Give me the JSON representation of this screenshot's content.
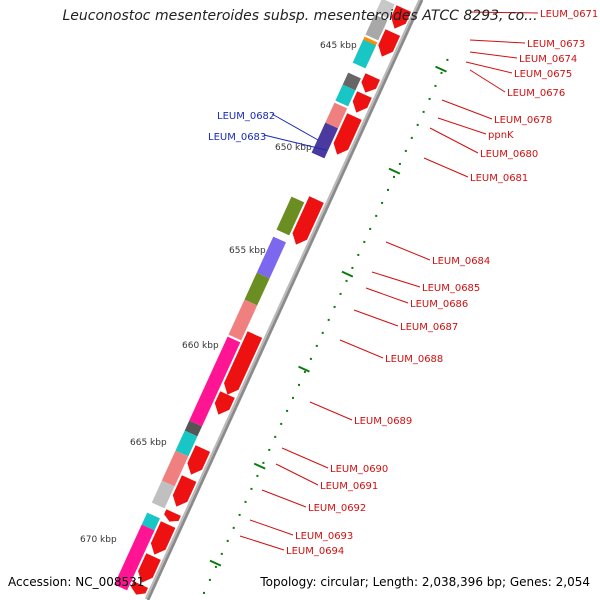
{
  "title": "Leuconostoc mesenteroides subsp. mesenteroides ATCC 8293, co...",
  "accession": "Accession: NC_008531",
  "topology": "Topology: circular; Length: 2,038,396 bp; Genes: 2,054",
  "colors": {
    "gene_red": "#ee1111",
    "gene_blue": "#1a2ad8",
    "label_red": "#d01010",
    "label_blue": "#1a2ab8",
    "scale_green": "#0a7a0a",
    "backbone": "#8a8a8a"
  },
  "scale_ticks": [
    {
      "label": "645 kbp"
    },
    {
      "label": "650 kbp"
    },
    {
      "label": "655 kbp"
    },
    {
      "label": "660 kbp"
    },
    {
      "label": "665 kbp"
    },
    {
      "label": "670 kbp"
    }
  ],
  "left_labels": [
    {
      "text": "LEUM_0682"
    },
    {
      "text": "LEUM_0683"
    }
  ],
  "right_labels": [
    {
      "text": "LEUM_0671"
    },
    {
      "text": "LEUM_0673"
    },
    {
      "text": "LEUM_0674"
    },
    {
      "text": "LEUM_0675"
    },
    {
      "text": "LEUM_0676"
    },
    {
      "text": "LEUM_0678"
    },
    {
      "text": "ppnK"
    },
    {
      "text": "LEUM_0680"
    },
    {
      "text": "LEUM_0681"
    },
    {
      "text": "LEUM_0684"
    },
    {
      "text": "LEUM_0685"
    },
    {
      "text": "LEUM_0686"
    },
    {
      "text": "LEUM_0687"
    },
    {
      "text": "LEUM_0688"
    },
    {
      "text": "LEUM_0689"
    },
    {
      "text": "LEUM_0690"
    },
    {
      "text": "LEUM_0691"
    },
    {
      "text": "LEUM_0692"
    },
    {
      "text": "LEUM_0693"
    },
    {
      "text": "LEUM_0694"
    }
  ]
}
